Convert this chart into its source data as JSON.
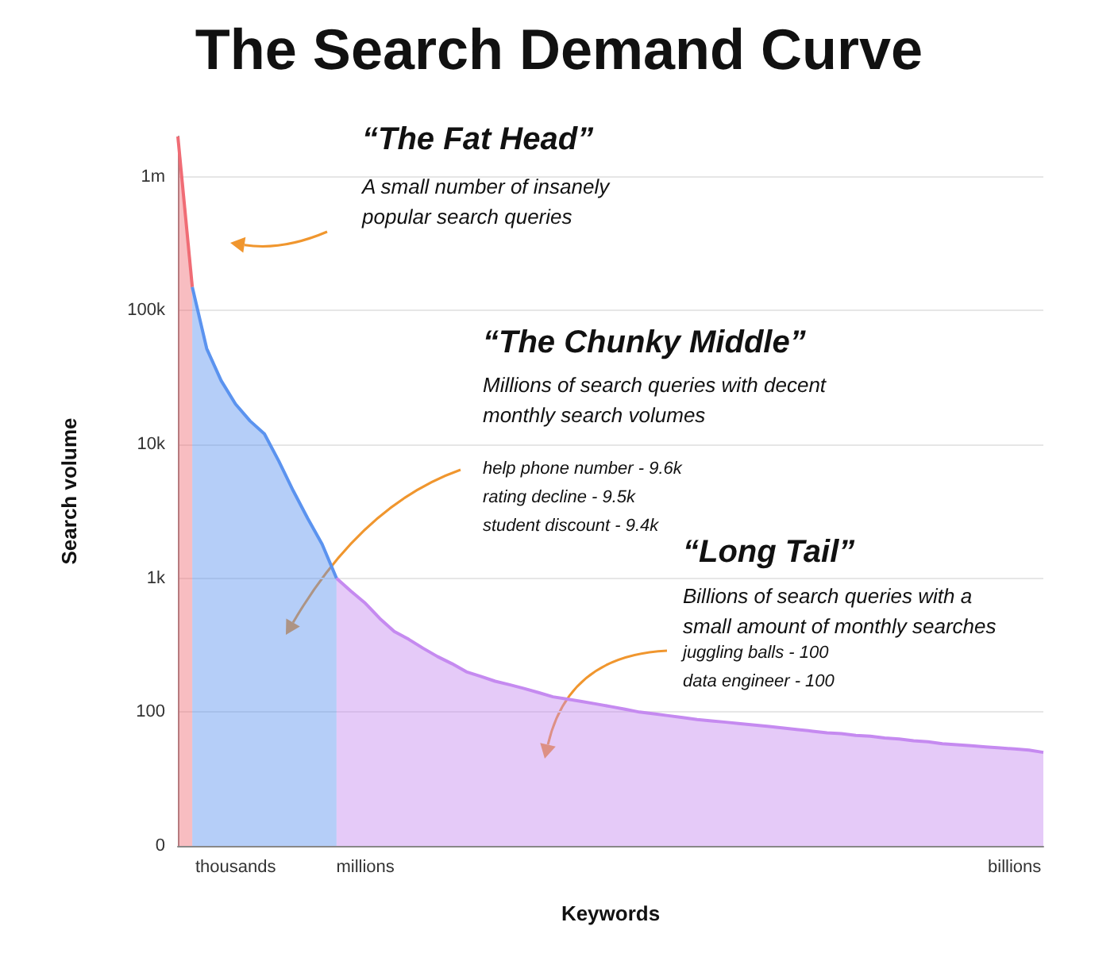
{
  "chart_data": {
    "type": "area",
    "title": "The Search Demand Curve",
    "xlabel": "Keywords",
    "ylabel": "Search volume",
    "categories": [
      null,
      null,
      null,
      null,
      "thousands",
      null,
      null,
      null,
      null,
      null,
      null,
      null,
      null,
      "millions",
      null,
      null,
      null,
      null,
      null,
      null,
      null,
      null,
      null,
      null,
      null,
      null,
      null,
      null,
      null,
      null,
      null,
      null,
      null,
      null,
      null,
      null,
      null,
      null,
      null,
      null,
      null,
      null,
      null,
      null,
      null,
      null,
      null,
      null,
      null,
      null,
      null,
      null,
      null,
      null,
      null,
      null,
      null,
      null,
      "billions",
      null,
      null
    ],
    "series": [
      {
        "color": "#f06c75",
        "values": [
          2000000,
          150000,
          null,
          null,
          null,
          null,
          null,
          null,
          null,
          null,
          null,
          null,
          null,
          null,
          null,
          null,
          null,
          null,
          null,
          null,
          null,
          null,
          null,
          null,
          null,
          null,
          null,
          null,
          null,
          null,
          null,
          null,
          null,
          null,
          null,
          null,
          null,
          null,
          null,
          null,
          null,
          null,
          null,
          null,
          null,
          null,
          null,
          null,
          null,
          null,
          null,
          null,
          null,
          null,
          null,
          null,
          null,
          null,
          null,
          null,
          null
        ]
      },
      {
        "color": "#5b93ef",
        "values": [
          null,
          150000,
          52000,
          30000,
          20000,
          15000,
          12000,
          7500,
          4500,
          2800,
          1800,
          1000,
          null,
          null,
          null,
          null,
          null,
          null,
          null,
          null,
          null,
          null,
          null,
          null,
          null,
          null,
          null,
          null,
          null,
          null,
          null,
          null,
          null,
          null,
          null,
          null,
          null,
          null,
          null,
          null,
          null,
          null,
          null,
          null,
          null,
          null,
          null,
          null,
          null,
          null,
          null,
          null,
          null,
          null,
          null,
          null,
          null,
          null,
          null,
          null,
          null
        ]
      },
      {
        "color": "#c58af0",
        "values": [
          null,
          null,
          null,
          null,
          null,
          null,
          null,
          null,
          null,
          null,
          null,
          1000,
          800,
          650,
          500,
          400,
          350,
          300,
          260,
          230,
          200,
          185,
          170,
          160,
          150,
          140,
          130,
          125,
          120,
          115,
          110,
          105,
          100,
          97,
          94,
          91,
          88,
          86,
          84,
          82,
          80,
          78,
          76,
          74,
          72,
          70,
          69,
          67,
          66,
          64,
          63,
          61,
          60,
          58,
          57,
          56,
          55,
          54,
          53,
          52,
          50
        ]
      }
    ],
    "log": "y",
    "ylim": [
      0,
      2000000
    ],
    "yticks": [
      0,
      {
        "value": 100,
        "label": "100"
      },
      {
        "value": 1000,
        "label": "1k"
      },
      {
        "value": 10000,
        "label": "10k"
      },
      {
        "value": 100000,
        "label": "100k"
      },
      {
        "value": 1000000,
        "label": "1m"
      }
    ],
    "grid": "y",
    "annotations": [
      "“The Fat Head”",
      "A small number of insanely\npopular search queries",
      "“The Chunky Middle”",
      "Millions of search queries with decent\nmonthly search volumes",
      "help phone number - 9.6k",
      "rating decline - 9.5k",
      "student discount - 9.4k",
      "“Long Tail”",
      "Billions of search queries with a\nsmall amount of monthly searches",
      "juggling balls - 100",
      "data engineer - 100"
    ]
  }
}
